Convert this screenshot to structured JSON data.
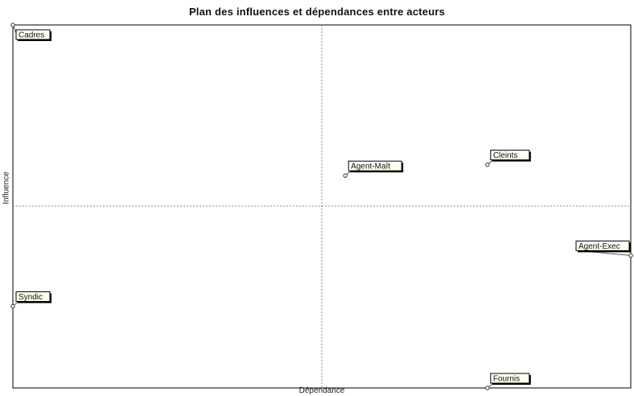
{
  "chart_data": {
    "type": "scatter",
    "title": "Plan des influences et dépendances entre acteurs",
    "xlabel": "Dépendance",
    "ylabel": "Influence",
    "xlim": [
      0,
      1
    ],
    "ylim": [
      0,
      1
    ],
    "grid": "crosshair at center (dashed)",
    "points": [
      {
        "label": "Cadres",
        "x": 0.0,
        "y": 1.0
      },
      {
        "label": "Agent-Maît",
        "x": 0.538,
        "y": 0.585
      },
      {
        "label": "Cleints",
        "x": 0.768,
        "y": 0.615
      },
      {
        "label": "Agent-Exec",
        "x": 1.0,
        "y": 0.365
      },
      {
        "label": "Syndic",
        "x": 0.0,
        "y": 0.225
      },
      {
        "label": "Fournis",
        "x": 0.768,
        "y": 0.0
      }
    ]
  }
}
